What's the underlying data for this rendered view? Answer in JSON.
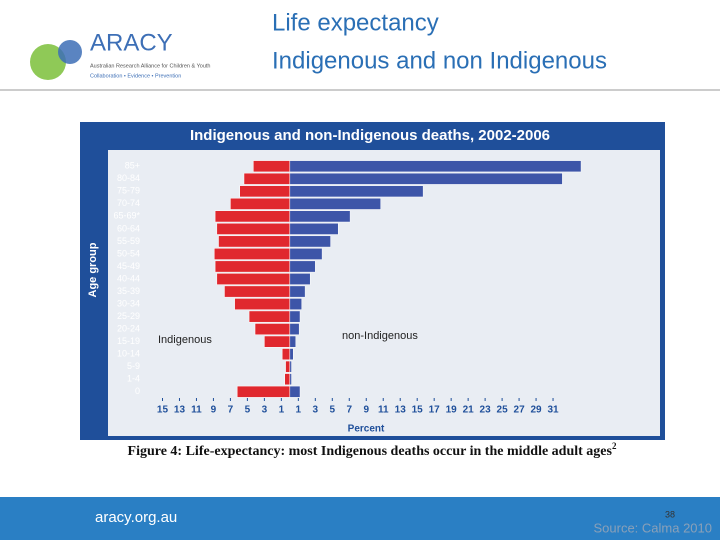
{
  "header": {
    "logo": "ARACY",
    "logo_subtitle": "Australian Research Alliance for Children & Youth",
    "logo_tagline": "Collaboration • Evidence • Prevention",
    "title_lines": [
      "Life expectancy",
      "Indigenous and non Indigenous"
    ]
  },
  "chart_data": {
    "type": "pyramid",
    "title": "Indigenous and non-Indigenous deaths, 2002-2006",
    "y_label": "Age group",
    "x_label": "Percent",
    "categories": [
      "85+",
      "80-84",
      "75-79",
      "70-74",
      "65-69*",
      "60-64",
      "55-59",
      "50-54",
      "45-49",
      "40-44",
      "35-39",
      "30-34",
      "25-29",
      "20-24",
      "15-19",
      "10-14",
      "5-9",
      "1-4",
      "0"
    ],
    "series": [
      {
        "name": "Indigenous",
        "color": "#e0282e",
        "side": "left",
        "values": [
          4.3,
          5.4,
          5.9,
          7.0,
          8.8,
          8.6,
          8.4,
          8.9,
          8.8,
          8.6,
          7.7,
          6.5,
          4.8,
          4.1,
          3.0,
          0.9,
          0.5,
          0.6,
          6.2
        ]
      },
      {
        "name": "non-Indigenous",
        "color": "#3d55a8",
        "side": "right",
        "values": [
          34.3,
          32.1,
          15.7,
          10.7,
          7.1,
          5.7,
          4.8,
          3.8,
          3.0,
          2.4,
          1.8,
          1.4,
          1.2,
          1.1,
          0.7,
          0.4,
          0.2,
          0.2,
          1.2
        ]
      }
    ],
    "xlim": [
      -16,
      35
    ],
    "xticks": [
      {
        "value": -15,
        "label": "15"
      },
      {
        "value": -13,
        "label": "13"
      },
      {
        "value": -11,
        "label": "11"
      },
      {
        "value": -9,
        "label": "9"
      },
      {
        "value": -7,
        "label": "7"
      },
      {
        "value": -5,
        "label": "5"
      },
      {
        "value": -3,
        "label": "3"
      },
      {
        "value": -1,
        "label": "1"
      },
      1,
      3,
      5,
      7,
      9,
      11,
      13,
      15,
      17,
      19,
      21,
      23,
      25,
      27,
      29,
      31
    ],
    "caption": "Figure 4: Life-expectancy: most Indigenous deaths occur in the middle adult ages",
    "caption_sup": "2"
  },
  "footer": {
    "url": "aracy.org.au",
    "page_number": 38,
    "source": "Source: Calma 2010"
  }
}
